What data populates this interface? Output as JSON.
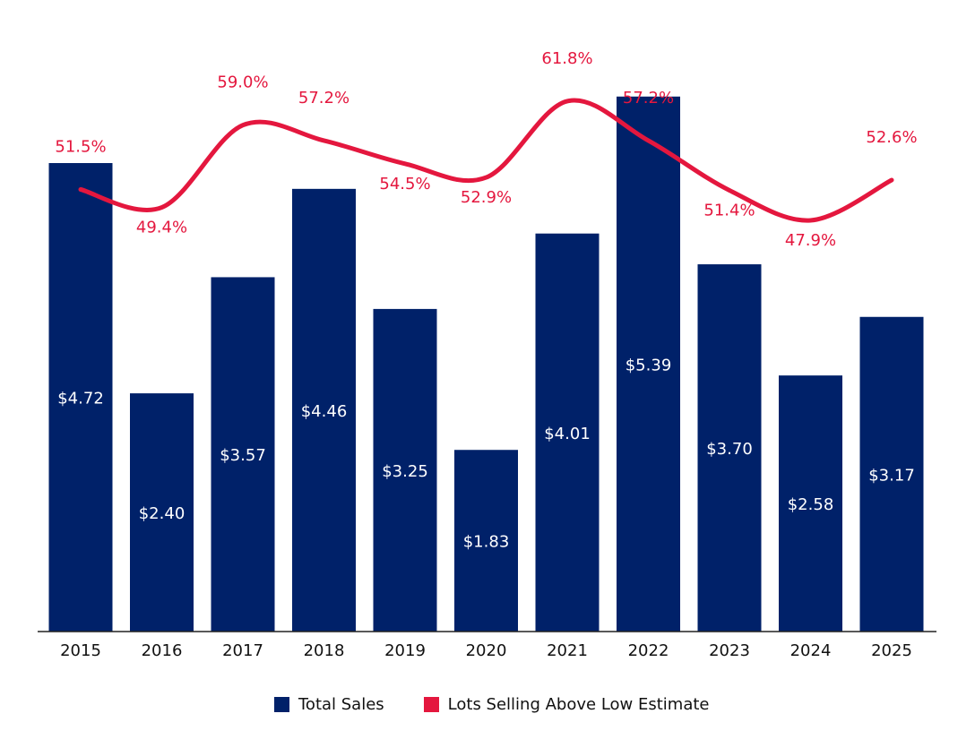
{
  "chart_data": {
    "type": "bar+line",
    "categories": [
      "2015",
      "2016",
      "2017",
      "2018",
      "2019",
      "2020",
      "2021",
      "2022",
      "2023",
      "2024",
      "2025"
    ],
    "series": [
      {
        "name": "Total Sales",
        "type": "bar",
        "color": "#002169",
        "values": [
          4.72,
          2.4,
          3.57,
          4.46,
          3.25,
          1.83,
          4.01,
          5.39,
          3.7,
          2.58,
          3.17
        ],
        "labels": [
          "$4.72",
          "$2.40",
          "$3.57",
          "$4.46",
          "$3.25",
          "$1.83",
          "$4.01",
          "$5.39",
          "$3.70",
          "$2.58",
          "$3.17"
        ]
      },
      {
        "name": "Lots Selling Above Low Estimate",
        "type": "line",
        "color": "#E4173E",
        "values": [
          51.5,
          49.4,
          59.0,
          57.2,
          54.5,
          52.9,
          61.8,
          57.2,
          51.4,
          47.9,
          52.6
        ],
        "labels": [
          "51.5%",
          "49.4%",
          "59.0%",
          "57.2%",
          "54.5%",
          "52.9%",
          "61.8%",
          "57.2%",
          "51.4%",
          "47.9%",
          "52.6%"
        ]
      }
    ],
    "title": "",
    "xlabel": "",
    "ylabel": "",
    "ylim": [
      0,
      5.39
    ],
    "grid": false,
    "legend": "bottom"
  }
}
